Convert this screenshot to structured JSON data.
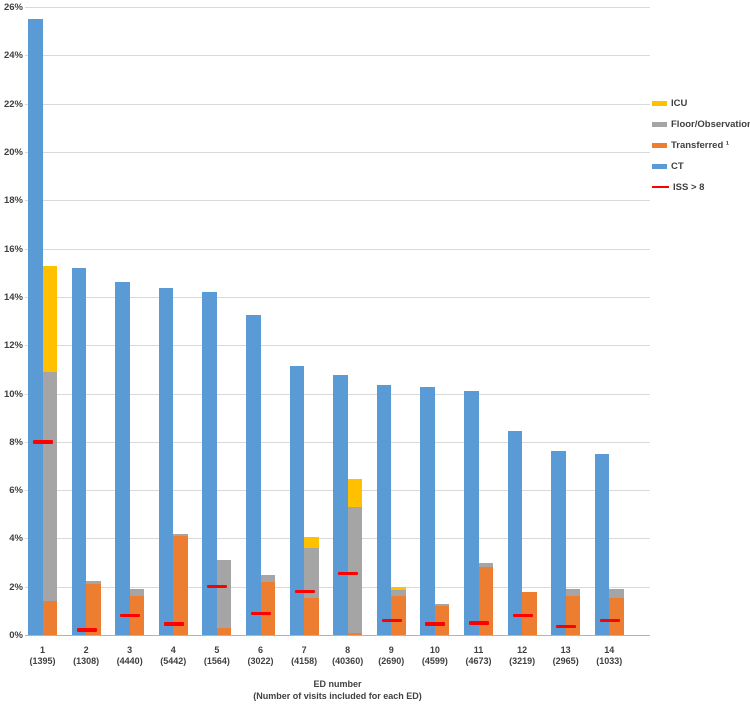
{
  "chart_data": {
    "type": "bar",
    "subtype": "per-ED pair: CT column beside a stacked column (Transferred/Floor-Observation/ICU), plus red dash markers for ISS > 8",
    "title": "",
    "xlabel_line1": "ED number",
    "xlabel_line2": "(Number of visits included for each ED)",
    "ylabel": "",
    "ylim": [
      0,
      26
    ],
    "y_tick_step": 2,
    "y_ticks": [
      "0%",
      "2%",
      "4%",
      "6%",
      "8%",
      "10%",
      "12%",
      "14%",
      "16%",
      "18%",
      "20%",
      "22%",
      "24%",
      "26%"
    ],
    "grid": true,
    "legend_position": "right",
    "categories": [
      "1",
      "2",
      "3",
      "4",
      "5",
      "6",
      "7",
      "8",
      "9",
      "10",
      "11",
      "12",
      "13",
      "14"
    ],
    "visits": [
      "(1395)",
      "(1308)",
      "(4440)",
      "(5442)",
      "(1564)",
      "(3022)",
      "(4158)",
      "(40360)",
      "(2690)",
      "(4599)",
      "(4673)",
      "(3219)",
      "(2965)",
      "(1033)"
    ],
    "bar_series": {
      "name": "CT",
      "color": "#5B9BD5",
      "values": [
        25.5,
        15.2,
        14.6,
        14.35,
        14.2,
        13.25,
        11.15,
        10.75,
        10.35,
        10.25,
        10.1,
        8.45,
        7.6,
        7.5
      ]
    },
    "stack_series": [
      {
        "name": "ICU",
        "color": "#FFC000",
        "values": [
          4.4,
          0,
          0,
          0,
          0,
          0,
          0.45,
          1.15,
          0.15,
          0,
          0,
          0,
          0,
          0
        ]
      },
      {
        "name": "Floor/Observation",
        "color": "#A5A5A5",
        "values": [
          9.5,
          0.15,
          0.3,
          0.1,
          2.8,
          0.3,
          2.05,
          5.2,
          0.25,
          0.1,
          0.2,
          0,
          0.3,
          0.35
        ]
      },
      {
        "name": "Transferred ¹",
        "color": "#ED7D31",
        "values": [
          1.4,
          2.1,
          1.6,
          4.1,
          0.3,
          2.2,
          1.55,
          0.1,
          1.6,
          1.2,
          2.8,
          1.8,
          1.6,
          1.55
        ]
      }
    ],
    "marker_series": {
      "name": "ISS > 8",
      "color": "#FF0000",
      "values": [
        8.0,
        0.2,
        0.8,
        0.45,
        2.0,
        0.9,
        1.8,
        2.55,
        0.6,
        0.45,
        0.5,
        0.8,
        0.35,
        0.6
      ]
    }
  }
}
